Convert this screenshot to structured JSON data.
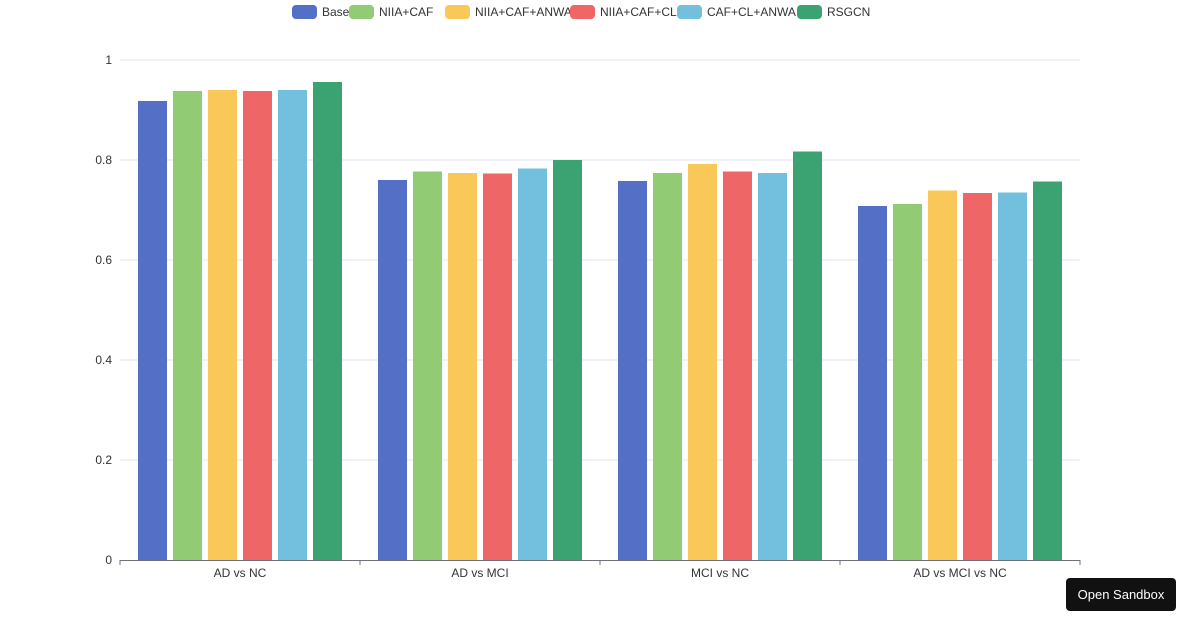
{
  "sandbox_button": {
    "label": "Open Sandbox"
  },
  "chart_data": {
    "type": "bar",
    "title": "",
    "xlabel": "",
    "ylabel": "",
    "ylim": [
      0,
      1
    ],
    "yticks": [
      "0",
      "0.2",
      "0.4",
      "0.6",
      "0.8",
      "1"
    ],
    "grid": true,
    "legend_position": "top",
    "categories": [
      "AD vs NC",
      "AD vs MCI",
      "MCI vs NC",
      "AD vs MCI vs NC"
    ],
    "series": [
      {
        "name": "Base",
        "color": "#5470c6",
        "values": [
          0.918,
          0.76,
          0.758,
          0.708
        ]
      },
      {
        "name": "NIIA+CAF",
        "color": "#91cc75",
        "values": [
          0.938,
          0.777,
          0.774,
          0.712
        ]
      },
      {
        "name": "NIIA+CAF+ANWA",
        "color": "#fac858",
        "values": [
          0.94,
          0.774,
          0.792,
          0.739
        ]
      },
      {
        "name": "NIIA+CAF+CL",
        "color": "#ee6666",
        "values": [
          0.938,
          0.773,
          0.777,
          0.734
        ]
      },
      {
        "name": "CAF+CL+ANWA",
        "color": "#73c0de",
        "values": [
          0.94,
          0.783,
          0.774,
          0.735
        ]
      },
      {
        "name": "RSGCN",
        "color": "#3ba272",
        "values": [
          0.956,
          0.8,
          0.817,
          0.757
        ]
      }
    ]
  }
}
